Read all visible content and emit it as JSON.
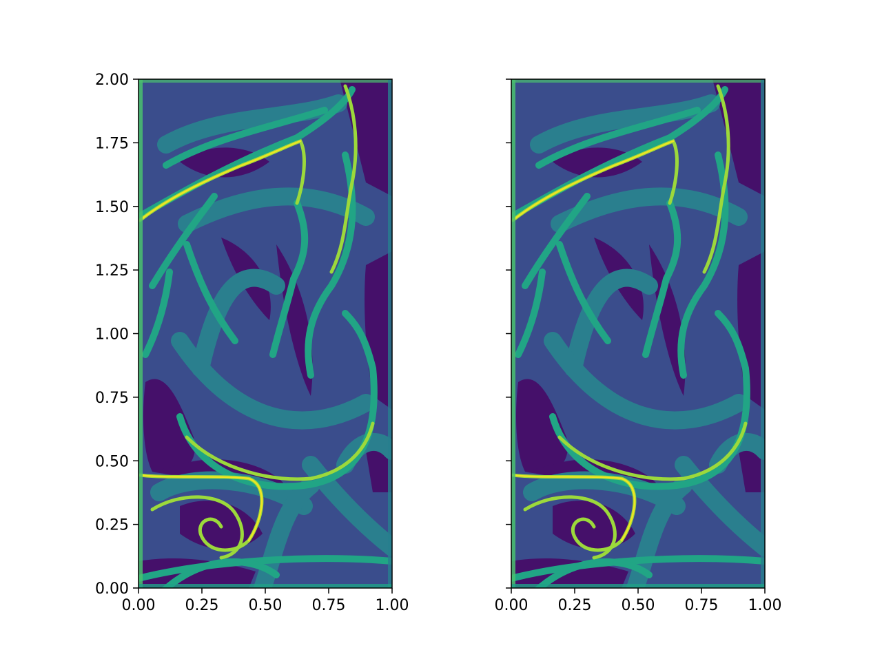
{
  "chart_data": [
    {
      "type": "heatmap",
      "panel": "left",
      "xlim": [
        0.0,
        1.0
      ],
      "ylim": [
        0.0,
        2.0
      ],
      "xticks": [
        "0.00",
        "0.25",
        "0.50",
        "0.75",
        "1.00"
      ],
      "yticks": [
        "0.00",
        "0.25",
        "0.50",
        "0.75",
        "1.00",
        "1.25",
        "1.50",
        "1.75",
        "2.00"
      ],
      "show_ytick_labels": true,
      "grid": false,
      "colormap": "viridis",
      "levels": [
        "#440154",
        "#46327e",
        "#365c8d",
        "#277f8e",
        "#1fa187",
        "#4ac16d",
        "#a0da39",
        "#fde725"
      ]
    },
    {
      "type": "heatmap",
      "panel": "right",
      "xlim": [
        0.0,
        1.0
      ],
      "ylim": [
        0.0,
        2.0
      ],
      "xticks": [
        "0.00",
        "0.25",
        "0.50",
        "0.75",
        "1.00"
      ],
      "yticks": [
        "0.00",
        "0.25",
        "0.50",
        "0.75",
        "1.00",
        "1.25",
        "1.50",
        "1.75",
        "2.00"
      ],
      "show_ytick_labels": false,
      "grid": false,
      "colormap": "viridis",
      "levels": [
        "#440154",
        "#46327e",
        "#365c8d",
        "#277f8e",
        "#1fa187",
        "#4ac16d",
        "#a0da39",
        "#fde725"
      ]
    }
  ]
}
